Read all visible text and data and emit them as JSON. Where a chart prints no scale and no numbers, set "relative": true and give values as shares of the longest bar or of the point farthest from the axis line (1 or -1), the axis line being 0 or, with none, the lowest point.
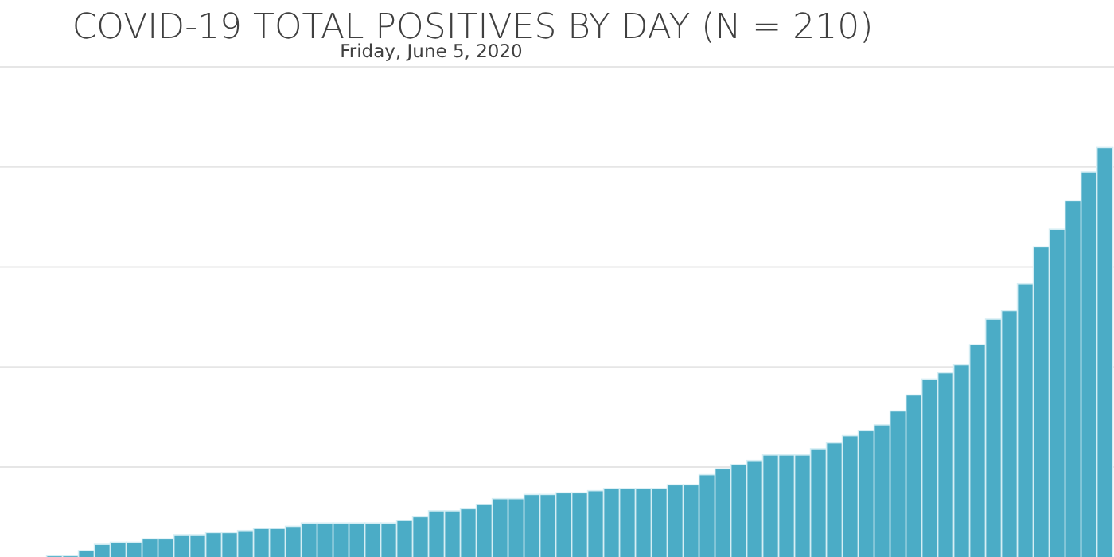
{
  "chart_data": {
    "type": "bar",
    "title": "COVID-19 TOTAL POSITIVES BY DAY (N = 210)",
    "subtitle": "Friday, June 5, 2020",
    "relative": true,
    "grid": true,
    "color": "#4bacc6",
    "categories": [
      null,
      null,
      null,
      null,
      null,
      null,
      null,
      null,
      null,
      null,
      null,
      null,
      null,
      null,
      null,
      null,
      null,
      null,
      null,
      null,
      null,
      null,
      null,
      null,
      null,
      null,
      null,
      null,
      null,
      null,
      null,
      null,
      null,
      null,
      null,
      null,
      null,
      null,
      null,
      null,
      null,
      null,
      null,
      null,
      null,
      null,
      null,
      null,
      null,
      null,
      null,
      null,
      null,
      null,
      null,
      null,
      null,
      null,
      null,
      null,
      null,
      null,
      null,
      null,
      null,
      null,
      null
    ],
    "values": [
      0.027,
      0.027,
      0.039,
      0.054,
      0.059,
      0.059,
      0.067,
      0.067,
      0.077,
      0.077,
      0.082,
      0.082,
      0.087,
      0.092,
      0.092,
      0.097,
      0.105,
      0.105,
      0.105,
      0.105,
      0.105,
      0.105,
      0.111,
      0.12,
      0.134,
      0.134,
      0.139,
      0.149,
      0.163,
      0.163,
      0.173,
      0.173,
      0.177,
      0.177,
      0.182,
      0.187,
      0.187,
      0.187,
      0.187,
      0.196,
      0.196,
      0.22,
      0.234,
      0.244,
      0.254,
      0.267,
      0.267,
      0.267,
      0.282,
      0.296,
      0.313,
      0.325,
      0.339,
      0.372,
      0.41,
      0.448,
      0.463,
      0.482,
      0.53,
      0.591,
      0.611,
      0.675,
      0.763,
      0.805,
      0.873,
      0.942,
      1
    ]
  }
}
